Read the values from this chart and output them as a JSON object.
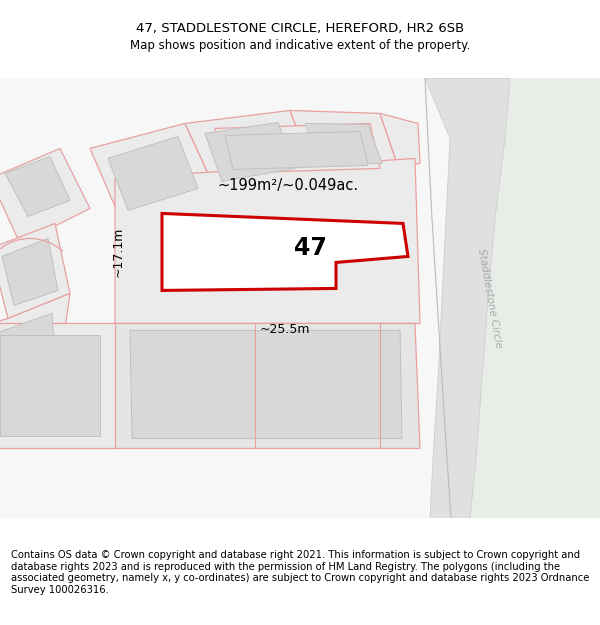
{
  "title_line1": "47, STADDLESTONE CIRCLE, HEREFORD, HR2 6SB",
  "title_line2": "Map shows position and indicative extent of the property.",
  "footer_text": "Contains OS data © Crown copyright and database right 2021. This information is subject to Crown copyright and database rights 2023 and is reproduced with the permission of HM Land Registry. The polygons (including the associated geometry, namely x, y co-ordinates) are subject to Crown copyright and database rights 2023 Ordnance Survey 100026316.",
  "area_label": "~199m²/~0.049ac.",
  "width_label": "~25.5m",
  "height_label": "~17.1m",
  "number_label": "47",
  "bg_color": "#f7f7f7",
  "green_color": "#e8ede8",
  "road_fill": "#e0e0e0",
  "road_edge": "#c8c8c8",
  "parcel_fill": "#ebebeb",
  "parcel_edge": "#e8a0a0",
  "building_fill": "#d8d8d8",
  "building_edge": "#c0c0c0",
  "plot_edge": "#cc0000",
  "dim_color": "#555555",
  "street_color": "#aaaaaa",
  "title_fontsize": 9.5,
  "subtitle_fontsize": 8.5,
  "footer_fontsize": 7.2,
  "street_label": "Staddlestone Circle"
}
